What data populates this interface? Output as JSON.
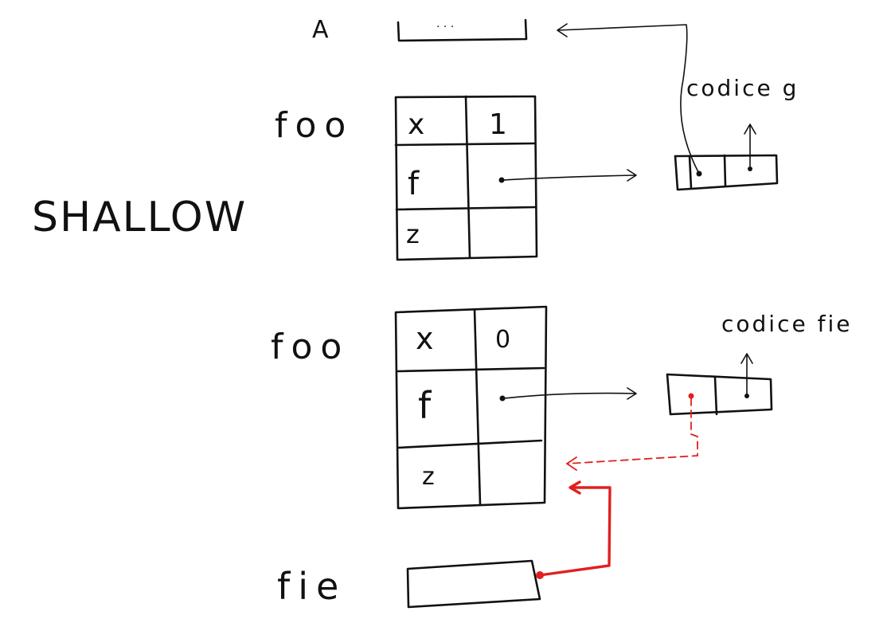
{
  "title": "SHALLOW",
  "top_var": {
    "label": "A",
    "value": "· · ·"
  },
  "frame1": {
    "label": "foo",
    "rows": [
      {
        "name": "x",
        "value": "1"
      },
      {
        "name": "f",
        "value": ""
      },
      {
        "name": "z",
        "value": ""
      }
    ]
  },
  "closure1": {
    "label": "codice g"
  },
  "frame2": {
    "label": "foo",
    "rows": [
      {
        "name": "x",
        "value": "0"
      },
      {
        "name": "f",
        "value": ""
      },
      {
        "name": "z",
        "value": ""
      }
    ]
  },
  "closure2": {
    "label": "codice fie"
  },
  "bottom_var": {
    "label": "fie"
  },
  "colors": {
    "ink": "#111111",
    "highlight": "#e0201e"
  }
}
